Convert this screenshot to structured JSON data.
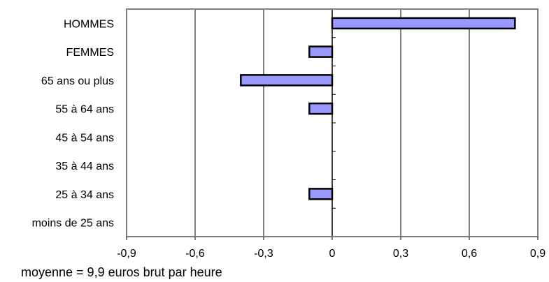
{
  "chart_data": {
    "type": "bar",
    "orientation": "horizontal",
    "categories": [
      "HOMMES",
      "FEMMES",
      "65 ans ou plus",
      "55 à 64 ans",
      "45 à 54 ans",
      "35 à 44 ans",
      "25 à 34 ans",
      "moins de 25 ans"
    ],
    "values": [
      0.8,
      -0.1,
      -0.4,
      -0.1,
      0,
      0,
      -0.1,
      0
    ],
    "xlim": [
      -0.9,
      0.9
    ],
    "xticks": [
      -0.9,
      -0.6,
      -0.3,
      0,
      0.3,
      0.6,
      0.9
    ],
    "xtick_labels": [
      "-0,9",
      "-0,6",
      "-0,3",
      "0",
      "0,3",
      "0,6",
      "0,9"
    ],
    "grid": "vertical",
    "bar_color": "#9999ff",
    "bar_edge_color": "#000000",
    "title": "",
    "xlabel": "",
    "ylabel": "",
    "footnote": "moyenne = 9,9 euros brut par heure"
  }
}
